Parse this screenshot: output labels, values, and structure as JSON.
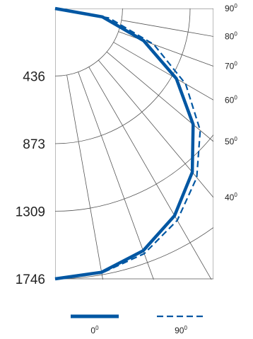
{
  "chart_data": {
    "type": "polar-line",
    "title": "",
    "radial_ticks": [
      "436",
      "873",
      "1309",
      "1746"
    ],
    "radial_max": 1746,
    "angle_labels": [
      {
        "deg": 90,
        "text": "90",
        "sup": "0"
      },
      {
        "deg": 80,
        "text": "80",
        "sup": "0"
      },
      {
        "deg": 70,
        "text": "70",
        "sup": "0"
      },
      {
        "deg": 60,
        "text": "60",
        "sup": "0"
      },
      {
        "deg": 50,
        "text": "50",
        "sup": "0"
      },
      {
        "deg": 40,
        "text": "40",
        "sup": "0"
      }
    ],
    "series": [
      {
        "name": "0",
        "name_sup": "0",
        "style": "solid",
        "angles": [
          0,
          10,
          20,
          30,
          40,
          50,
          60,
          70,
          80,
          90
        ],
        "values": [
          1746,
          1730,
          1665,
          1545,
          1380,
          1165,
          905,
          610,
          310,
          0
        ]
      },
      {
        "name": "90",
        "name_sup": "0",
        "style": "dashed",
        "angles": [
          0,
          10,
          20,
          30,
          40,
          50,
          60,
          70,
          80,
          90
        ],
        "values": [
          1746,
          1735,
          1685,
          1580,
          1425,
          1225,
          975,
          680,
          355,
          0
        ]
      }
    ],
    "grid": true
  },
  "colors": {
    "line": "#0057a3",
    "grid": "#555555"
  }
}
